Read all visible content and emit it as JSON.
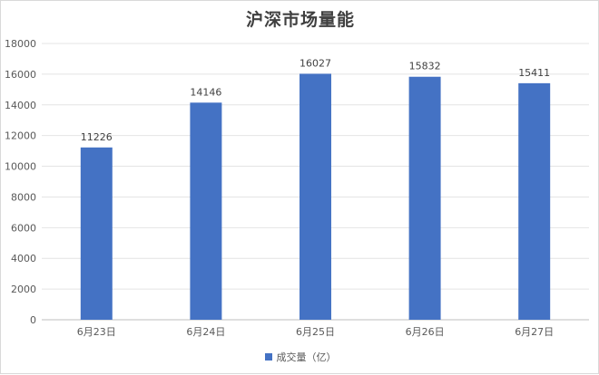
{
  "chart_data": {
    "type": "bar",
    "title": "沪深市场量能",
    "categories": [
      "6月23日",
      "6月24日",
      "6月25日",
      "6月26日",
      "6月27日"
    ],
    "series": [
      {
        "name": "成交量（亿）",
        "values": [
          11226,
          14146,
          16027,
          15832,
          15411
        ],
        "color": "#4472c4"
      }
    ],
    "ylim": [
      0,
      18000
    ],
    "yticks": [
      0,
      2000,
      4000,
      6000,
      8000,
      10000,
      12000,
      14000,
      16000,
      18000
    ],
    "grid": true,
    "legend_position": "bottom"
  }
}
